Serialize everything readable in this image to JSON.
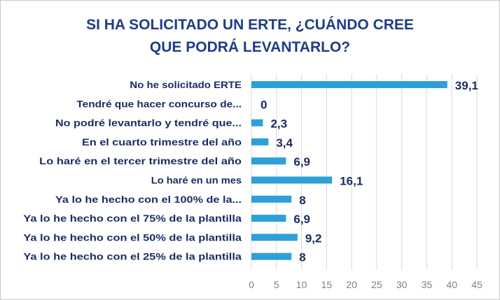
{
  "chart_data": {
    "type": "bar",
    "orientation": "horizontal",
    "title_lines": [
      "SI HA SOLICITADO UN ERTE, ¿CUÁNDO CREE",
      "QUE PODRÁ LEVANTARLO?"
    ],
    "categories": [
      "No he solicitado ERTE",
      "Tendré que hacer concurso de...",
      "No podré levantarlo y tendré que...",
      "En el cuarto trimestre del año",
      "Lo haré en el tercer trimestre del año",
      "Lo haré en un mes",
      "Ya lo he hecho con el 100% de la...",
      "Ya lo he hecho con el 75% de la plantilla",
      "Ya lo he hecho con el 50% de la plantilla",
      "Ya lo he hecho con el 25% de la plantilla"
    ],
    "values": [
      39.1,
      0,
      2.3,
      3.4,
      6.9,
      16.1,
      8,
      6.9,
      9.2,
      8
    ],
    "value_labels": [
      "39,1",
      "0",
      "2,3",
      "3,4",
      "6,9",
      "16,1",
      "8",
      "6,9",
      "9,2",
      "8"
    ],
    "xlim": [
      0,
      45
    ],
    "xticks": [
      0,
      5,
      10,
      15,
      20,
      25,
      30,
      35,
      40,
      45
    ],
    "grid": "vertical",
    "bar_color": "#2e9fd9",
    "text_color": "#1b2b5e",
    "title_color": "#1f3c88"
  }
}
